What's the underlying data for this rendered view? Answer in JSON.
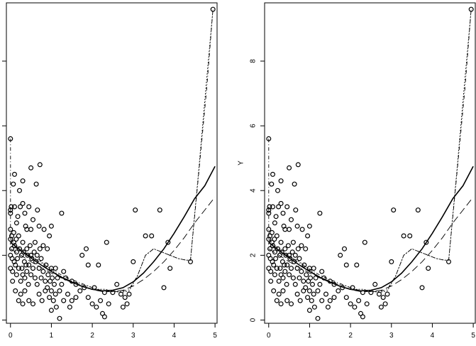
{
  "chart_data": [
    {
      "type": "scatter",
      "panel": "left",
      "title": "",
      "xlabel": "",
      "ylabel": "",
      "xlim": [
        -0.1,
        5.05
      ],
      "ylim": [
        -0.1,
        9.8
      ],
      "xticks": [
        0,
        1,
        2,
        3,
        4,
        5
      ],
      "xtick_labels": [
        "0",
        "1",
        "2",
        "3",
        "4",
        "5"
      ],
      "yticks": [
        0,
        2,
        4,
        6,
        8
      ],
      "ytick_labels": [
        "",
        "",
        "",
        "",
        ""
      ],
      "grid": false,
      "legend": "none"
    },
    {
      "type": "scatter",
      "panel": "right",
      "title": "",
      "xlabel": "",
      "ylabel": "Y",
      "xlim": [
        -0.1,
        5.05
      ],
      "ylim": [
        -0.1,
        9.8
      ],
      "xticks": [
        0,
        1,
        2,
        3,
        4,
        5
      ],
      "xtick_labels": [
        "0",
        "1",
        "2",
        "3",
        "4",
        "5"
      ],
      "yticks": [
        0,
        2,
        4,
        6,
        8
      ],
      "ytick_labels": [
        "0",
        "2",
        "4",
        "6",
        "8"
      ],
      "grid": false,
      "legend": "none"
    }
  ],
  "shared": {
    "points": [
      [
        0.0,
        5.6
      ],
      [
        0.0,
        3.4
      ],
      [
        0.0,
        3.3
      ],
      [
        0.0,
        2.8
      ],
      [
        0.0,
        2.5
      ],
      [
        0.0,
        2.0
      ],
      [
        0.0,
        1.6
      ],
      [
        0.02,
        3.5
      ],
      [
        0.03,
        2.6
      ],
      [
        0.03,
        2.2
      ],
      [
        0.04,
        1.9
      ],
      [
        0.05,
        1.5
      ],
      [
        0.05,
        1.2
      ],
      [
        0.07,
        4.2
      ],
      [
        0.08,
        2.7
      ],
      [
        0.08,
        2.4
      ],
      [
        0.09,
        1.8
      ],
      [
        0.1,
        4.5
      ],
      [
        0.1,
        3.5
      ],
      [
        0.1,
        2.3
      ],
      [
        0.12,
        1.7
      ],
      [
        0.12,
        0.9
      ],
      [
        0.14,
        2.5
      ],
      [
        0.15,
        3.0
      ],
      [
        0.15,
        2.1
      ],
      [
        0.15,
        1.4
      ],
      [
        0.17,
        1.9
      ],
      [
        0.18,
        3.2
      ],
      [
        0.2,
        2.6
      ],
      [
        0.2,
        1.6
      ],
      [
        0.2,
        0.6
      ],
      [
        0.22,
        4.0
      ],
      [
        0.22,
        2.2
      ],
      [
        0.24,
        3.5
      ],
      [
        0.25,
        1.2
      ],
      [
        0.25,
        0.8
      ],
      [
        0.27,
        2.0
      ],
      [
        0.28,
        1.6
      ],
      [
        0.3,
        4.3
      ],
      [
        0.3,
        3.6
      ],
      [
        0.3,
        2.4
      ],
      [
        0.3,
        1.4
      ],
      [
        0.3,
        0.5
      ],
      [
        0.32,
        2.1
      ],
      [
        0.34,
        1.8
      ],
      [
        0.35,
        3.3
      ],
      [
        0.35,
        1.3
      ],
      [
        0.35,
        0.9
      ],
      [
        0.37,
        2.9
      ],
      [
        0.38,
        1.7
      ],
      [
        0.4,
        2.8
      ],
      [
        0.4,
        2.2
      ],
      [
        0.4,
        1.5
      ],
      [
        0.42,
        2.0
      ],
      [
        0.44,
        1.1
      ],
      [
        0.45,
        3.5
      ],
      [
        0.45,
        1.7
      ],
      [
        0.45,
        0.6
      ],
      [
        0.48,
        2.3
      ],
      [
        0.5,
        4.7
      ],
      [
        0.5,
        2.8
      ],
      [
        0.5,
        2.0
      ],
      [
        0.5,
        1.4
      ],
      [
        0.52,
        1.9
      ],
      [
        0.55,
        3.1
      ],
      [
        0.55,
        1.6
      ],
      [
        0.55,
        0.5
      ],
      [
        0.58,
        2.1
      ],
      [
        0.6,
        2.4
      ],
      [
        0.6,
        1.3
      ],
      [
        0.62,
        1.8
      ],
      [
        0.63,
        4.2
      ],
      [
        0.65,
        2.0
      ],
      [
        0.65,
        1.1
      ],
      [
        0.66,
        3.4
      ],
      [
        0.7,
        2.9
      ],
      [
        0.7,
        1.6
      ],
      [
        0.7,
        0.8
      ],
      [
        0.72,
        4.8
      ],
      [
        0.72,
        2.2
      ],
      [
        0.75,
        1.9
      ],
      [
        0.75,
        1.3
      ],
      [
        0.77,
        0.6
      ],
      [
        0.8,
        2.3
      ],
      [
        0.8,
        1.5
      ],
      [
        0.82,
        2.8
      ],
      [
        0.85,
        1.2
      ],
      [
        0.85,
        0.9
      ],
      [
        0.87,
        1.7
      ],
      [
        0.9,
        2.2
      ],
      [
        0.9,
        1.0
      ],
      [
        0.92,
        1.4
      ],
      [
        0.95,
        2.6
      ],
      [
        0.95,
        0.7
      ],
      [
        0.97,
        1.2
      ],
      [
        1.0,
        2.9
      ],
      [
        1.0,
        1.6
      ],
      [
        1.0,
        0.9
      ],
      [
        1.0,
        0.3
      ],
      [
        1.02,
        1.3
      ],
      [
        1.05,
        0.6
      ],
      [
        1.07,
        1.1
      ],
      [
        1.1,
        1.6
      ],
      [
        1.1,
        0.8
      ],
      [
        1.12,
        0.4
      ],
      [
        1.15,
        1.3
      ],
      [
        1.2,
        0.9
      ],
      [
        1.2,
        0.05
      ],
      [
        1.25,
        3.3
      ],
      [
        1.25,
        1.1
      ],
      [
        1.3,
        1.5
      ],
      [
        1.3,
        0.6
      ],
      [
        1.35,
        1.3
      ],
      [
        1.4,
        0.8
      ],
      [
        1.45,
        0.4
      ],
      [
        1.5,
        1.2
      ],
      [
        1.5,
        0.6
      ],
      [
        1.6,
        1.1
      ],
      [
        1.6,
        0.7
      ],
      [
        1.7,
        0.9
      ],
      [
        1.75,
        2.0
      ],
      [
        1.8,
        1.0
      ],
      [
        1.85,
        2.2
      ],
      [
        1.9,
        1.7
      ],
      [
        1.9,
        0.7
      ],
      [
        2.0,
        0.5
      ],
      [
        2.05,
        1.0
      ],
      [
        2.1,
        0.4
      ],
      [
        2.15,
        1.7
      ],
      [
        2.2,
        0.6
      ],
      [
        2.25,
        0.2
      ],
      [
        2.3,
        0.85
      ],
      [
        2.3,
        0.1
      ],
      [
        2.35,
        2.4
      ],
      [
        2.4,
        0.5
      ],
      [
        2.5,
        0.85
      ],
      [
        2.6,
        1.1
      ],
      [
        2.7,
        0.8
      ],
      [
        2.75,
        0.4
      ],
      [
        2.8,
        0.7
      ],
      [
        2.85,
        0.5
      ],
      [
        2.9,
        0.8
      ],
      [
        3.0,
        1.8
      ],
      [
        3.05,
        3.4
      ],
      [
        3.3,
        2.6
      ],
      [
        3.45,
        2.6
      ],
      [
        3.65,
        3.4
      ],
      [
        3.75,
        1.0
      ],
      [
        3.85,
        2.4
      ],
      [
        3.9,
        1.6
      ],
      [
        4.4,
        1.8
      ],
      [
        4.95,
        9.6
      ]
    ],
    "curves": {
      "solid": {
        "x": [
          0,
          0.25,
          0.5,
          0.75,
          1.0,
          1.25,
          1.5,
          1.75,
          2.0,
          2.25,
          2.5,
          2.75,
          3.0,
          3.25,
          3.5,
          3.75,
          4.0,
          4.25,
          4.5,
          4.75,
          5.0
        ],
        "y": [
          2.4,
          2.15,
          1.92,
          1.7,
          1.5,
          1.32,
          1.17,
          1.04,
          0.95,
          0.9,
          0.92,
          1.0,
          1.18,
          1.45,
          1.8,
          2.2,
          2.68,
          3.2,
          3.75,
          4.15,
          4.75
        ]
      },
      "dashed": {
        "x": [
          0,
          0.25,
          0.5,
          0.75,
          1.0,
          1.25,
          1.5,
          1.75,
          2.0,
          2.25,
          2.5,
          2.75,
          3.0,
          3.25,
          3.5,
          3.75,
          4.0,
          4.25,
          4.5,
          4.75,
          5.0
        ],
        "y": [
          2.2,
          2.0,
          1.8,
          1.62,
          1.45,
          1.3,
          1.16,
          1.04,
          0.94,
          0.88,
          0.88,
          0.92,
          1.05,
          1.25,
          1.5,
          1.8,
          2.15,
          2.55,
          3.0,
          3.4,
          3.8
        ]
      },
      "dotted": {
        "x": [
          0,
          0.15,
          0.3,
          0.5,
          0.7,
          0.9,
          1.1,
          1.3,
          1.5,
          1.7,
          1.9,
          2.1,
          2.3,
          2.5,
          2.7,
          2.9,
          3.1,
          3.3,
          3.5,
          3.7,
          3.9,
          4.1,
          4.3,
          4.4,
          4.6,
          4.8,
          4.95
        ],
        "y": [
          2.5,
          2.3,
          2.15,
          1.95,
          1.85,
          1.65,
          1.45,
          1.3,
          1.2,
          1.1,
          1.05,
          0.95,
          0.95,
          0.9,
          0.85,
          0.9,
          1.35,
          2.0,
          2.2,
          2.1,
          2.0,
          1.9,
          1.85,
          1.85,
          4.6,
          7.5,
          9.6
        ]
      },
      "dotdash": {
        "x": [
          0,
          0,
          0.1,
          0.3,
          0.5,
          0.7,
          0.9,
          1.1,
          1.3,
          1.5,
          1.7,
          1.9,
          2.1,
          2.3,
          2.5,
          2.7,
          2.9,
          3.1,
          3.3,
          3.5,
          3.7,
          3.9,
          4.1,
          4.3,
          4.4,
          4.6,
          4.8,
          4.95
        ],
        "y": [
          5.6,
          2.3,
          2.25,
          2.1,
          1.95,
          1.8,
          1.65,
          1.5,
          1.35,
          1.25,
          1.15,
          1.05,
          0.95,
          0.9,
          0.88,
          0.88,
          0.95,
          1.35,
          2.0,
          2.2,
          2.1,
          2.0,
          1.9,
          1.85,
          1.85,
          4.5,
          7.2,
          9.6
        ]
      }
    }
  }
}
